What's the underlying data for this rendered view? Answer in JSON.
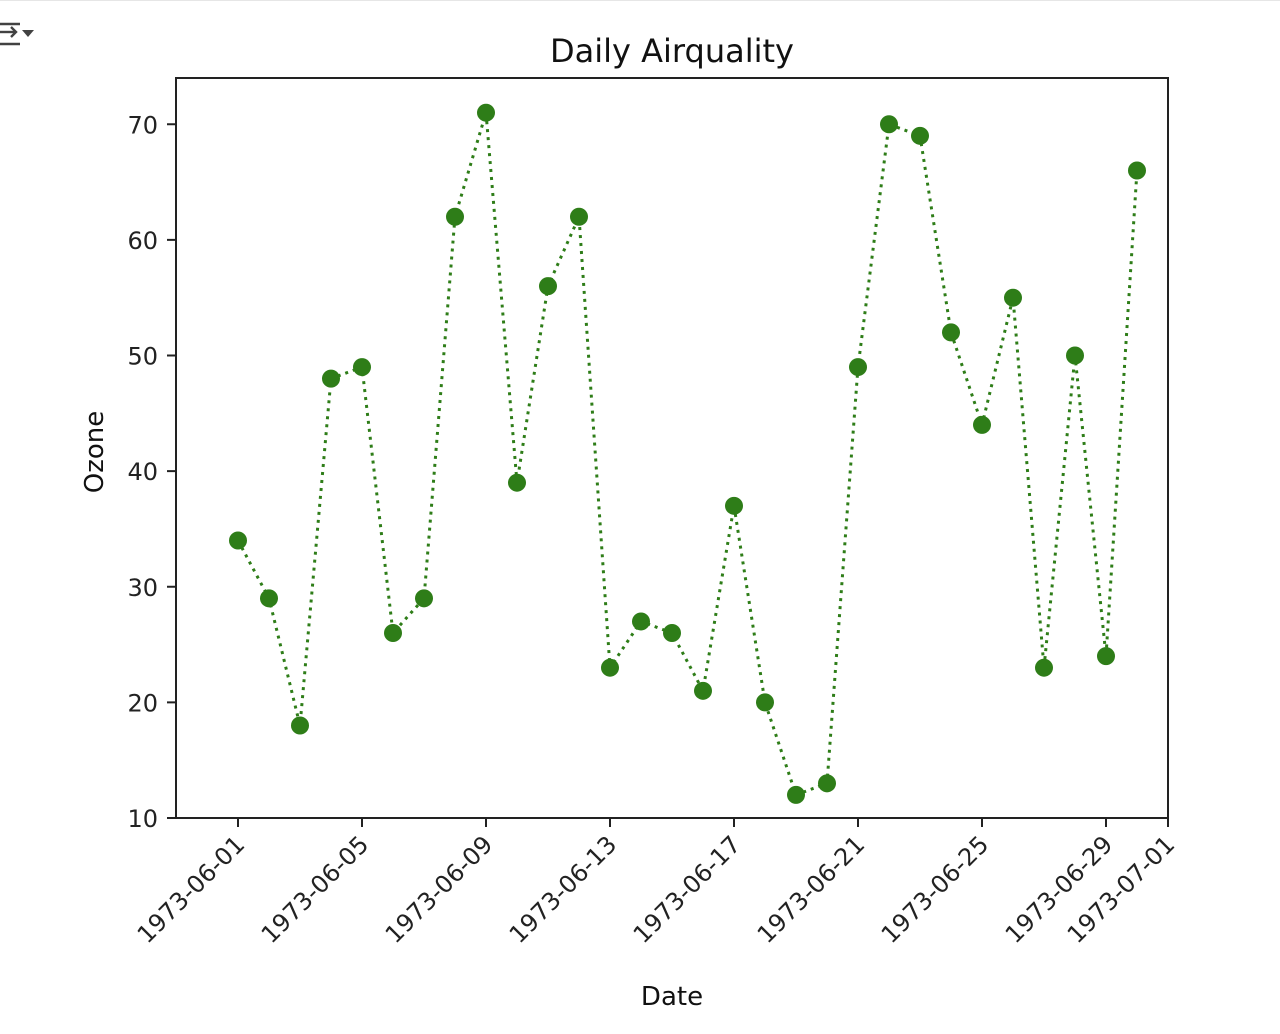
{
  "toolbar": {
    "output_toggle_icon": "collapse-output-icon"
  },
  "chart_data": {
    "type": "line",
    "title": "Daily Airquality",
    "xlabel": "Date",
    "ylabel": "Ozone",
    "x_axis_type": "date",
    "xlim": [
      "1973-05-30",
      "1973-07-01"
    ],
    "ylim": [
      10,
      74
    ],
    "x_ticks": [
      "1973-06-01",
      "1973-06-05",
      "1973-06-09",
      "1973-06-13",
      "1973-06-17",
      "1973-06-21",
      "1973-06-25",
      "1973-06-29",
      "1973-07-01"
    ],
    "y_ticks": [
      10,
      20,
      30,
      40,
      50,
      60,
      70
    ],
    "x_tick_rotation": 45,
    "grid": false,
    "legend": false,
    "line_style": "dotted",
    "marker": "circle",
    "color": "#2e7d18",
    "series": [
      {
        "x": [
          "1973-06-01",
          "1973-06-02",
          "1973-06-03",
          "1973-06-04",
          "1973-06-05",
          "1973-06-06",
          "1973-06-07",
          "1973-06-08",
          "1973-06-09",
          "1973-06-10",
          "1973-06-11",
          "1973-06-12",
          "1973-06-13",
          "1973-06-14",
          "1973-06-15",
          "1973-06-16",
          "1973-06-17",
          "1973-06-18",
          "1973-06-19",
          "1973-06-20",
          "1973-06-21",
          "1973-06-22",
          "1973-06-23",
          "1973-06-24",
          "1973-06-25",
          "1973-06-26",
          "1973-06-27",
          "1973-06-28",
          "1973-06-29",
          "1973-06-30"
        ],
        "values": [
          34,
          29,
          18,
          48,
          49,
          26,
          29,
          62,
          71,
          39,
          56,
          62,
          23,
          27,
          26,
          21,
          37,
          20,
          12,
          13,
          49,
          70,
          69,
          52,
          44,
          55,
          23,
          50,
          24,
          66
        ]
      }
    ]
  }
}
